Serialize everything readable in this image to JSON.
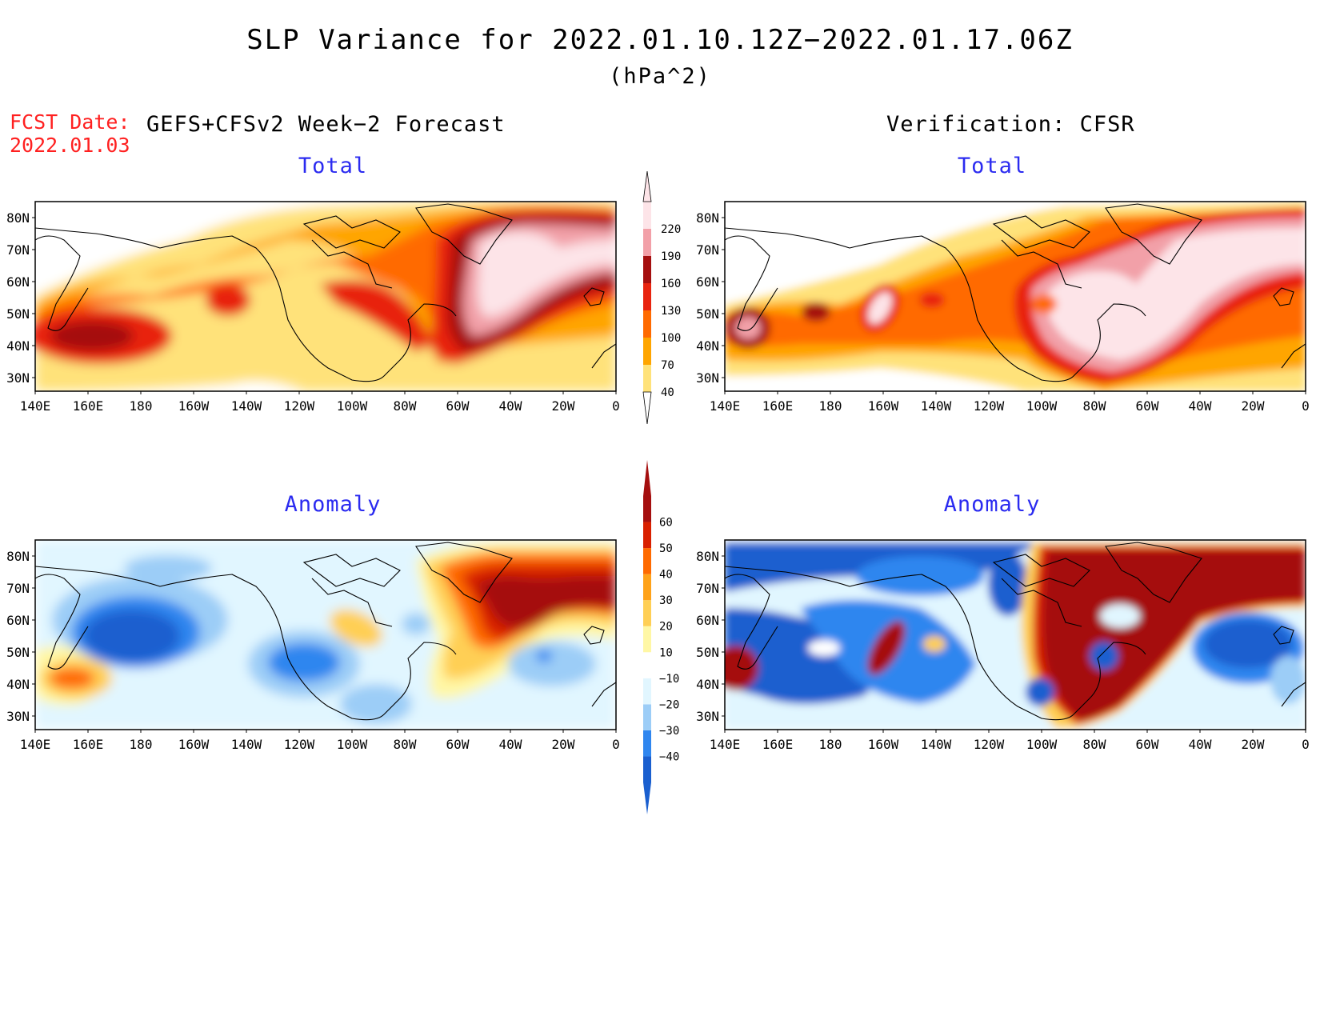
{
  "header": {
    "title": "SLP Variance for 2022.01.10.12Z−2022.01.17.06Z",
    "units": "(hPa^2)",
    "fcst_label": "FCST Date:",
    "fcst_date": "2022.01.03",
    "left_heading": "GEFS+CFSv2 Week−2 Forecast",
    "right_heading": "Verification: CFSR"
  },
  "panels": {
    "top_left_title": "Total",
    "top_right_title": "Total",
    "bottom_left_title": "Anomaly",
    "bottom_right_title": "Anomaly"
  },
  "axes": {
    "lat_labels": [
      "80N",
      "70N",
      "60N",
      "50N",
      "40N",
      "30N"
    ],
    "lon_labels": [
      "140E",
      "160E",
      "180",
      "160W",
      "140W",
      "120W",
      "100W",
      "80W",
      "60W",
      "40W",
      "20W",
      "0"
    ]
  },
  "colorbars": {
    "total": {
      "levels": [
        "40",
        "70",
        "100",
        "130",
        "160",
        "190",
        "220"
      ],
      "colors": [
        "#ffe27a",
        "#ffa500",
        "#ff6a00",
        "#e8240f",
        "#a50f0f",
        "#f2a0a8",
        "#fde4e8"
      ]
    },
    "anomaly": {
      "levels": [
        "−40",
        "−30",
        "−20",
        "−10",
        "10",
        "20",
        "30",
        "40",
        "50",
        "60"
      ],
      "colors": [
        "#1a5fcf",
        "#2f86ef",
        "#9ccdf7",
        "#e1f6ff",
        "#ffffff",
        "#fff7a5",
        "#ffcf55",
        "#ffa219",
        "#ff6a00",
        "#d92000",
        "#a50f0f"
      ]
    }
  }
}
